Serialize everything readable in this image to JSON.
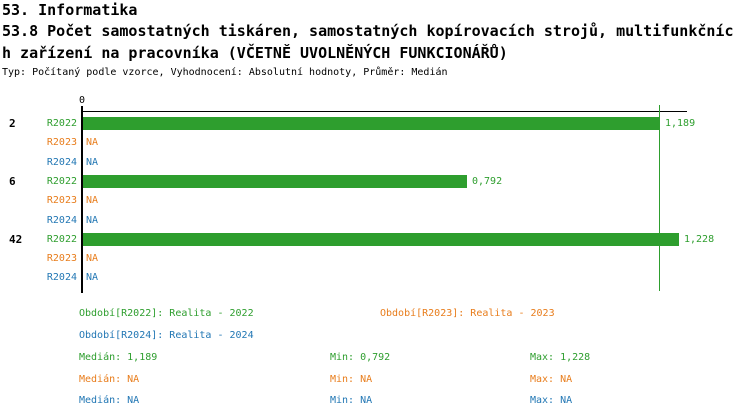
{
  "header": {
    "line1": "53. Informatika",
    "line2": "53.8 Počet samostatných tiskáren, samostatných kopírovacích strojů, multifunkčníc",
    "line3": "h zařízení na pracovníka (VČETNĚ UVOLNĚNÝCH FUNKCIONÁŘŮ)",
    "line4": "Typ: Počítaný podle vzorce, Vyhodnocení: Absolutní hodnoty, Průměr: Medián"
  },
  "colors": {
    "green": "#2E9E2E",
    "orange": "#E87D1C",
    "blue": "#2277B4",
    "axis": "#000000"
  },
  "chart_data": {
    "type": "bar",
    "orientation": "horizontal",
    "title": "53.8 Počet samostatných tiskáren, samostatných kopírovacích strojů, multifunkčních zařízení na pracovníka (VČETNĚ UVOLNĚNÝCH FUNKCIONÁŘŮ)",
    "subtitle": "Typ: Počítaný podle vzorce, Vyhodnocení: Absolutní hodnoty, Průměr: Medián",
    "x_axis_zero_label": "0",
    "xlim": [
      0,
      1.25
    ],
    "grid": false,
    "legend_position": "bottom",
    "median_line_value": 1.189,
    "series": [
      "R2022",
      "R2023",
      "R2024"
    ],
    "groups": [
      {
        "label": "2",
        "bars": [
          {
            "series": "R2022",
            "color": "green",
            "value": 1.189,
            "display": "1,189"
          },
          {
            "series": "R2023",
            "color": "orange",
            "value": null,
            "display": "NA"
          },
          {
            "series": "R2024",
            "color": "blue",
            "value": null,
            "display": "NA"
          }
        ]
      },
      {
        "label": "6",
        "bars": [
          {
            "series": "R2022",
            "color": "green",
            "value": 0.792,
            "display": "0,792"
          },
          {
            "series": "R2023",
            "color": "orange",
            "value": null,
            "display": "NA"
          },
          {
            "series": "R2024",
            "color": "blue",
            "value": null,
            "display": "NA"
          }
        ]
      },
      {
        "label": "42",
        "bars": [
          {
            "series": "R2022",
            "color": "green",
            "value": 1.228,
            "display": "1,228"
          },
          {
            "series": "R2023",
            "color": "orange",
            "value": null,
            "display": "NA"
          },
          {
            "series": "R2024",
            "color": "blue",
            "value": null,
            "display": "NA"
          }
        ]
      }
    ],
    "summary": {
      "median": 1.189,
      "min": 0.792,
      "max": 1.228
    }
  },
  "legend": {
    "periods": [
      {
        "series": "R2022",
        "color": "green",
        "text": "Období[R2022]: Realita - 2022"
      },
      {
        "series": "R2023",
        "color": "orange",
        "text": "Období[R2023]: Realita - 2023"
      },
      {
        "series": "R2024",
        "color": "blue",
        "text": "Období[R2024]: Realita - 2024"
      }
    ],
    "stats_rows": [
      {
        "series": "R2022",
        "color": "green",
        "median": "Medián: 1,189",
        "min": "Min: 0,792",
        "max": "Max: 1,228"
      },
      {
        "series": "R2023",
        "color": "orange",
        "median": "Medián: NA",
        "min": "Min: NA",
        "max": "Max: NA"
      },
      {
        "series": "R2024",
        "color": "blue",
        "median": "Medián: NA",
        "min": "Min: NA",
        "max": "Max: NA"
      }
    ]
  }
}
